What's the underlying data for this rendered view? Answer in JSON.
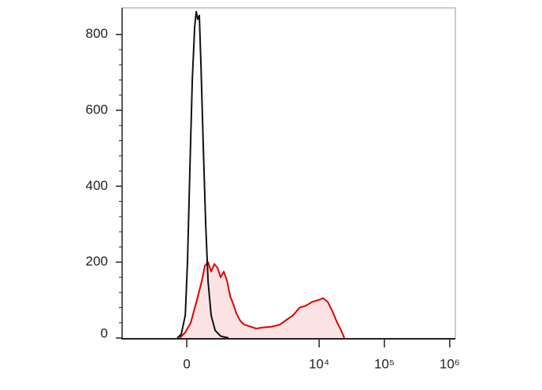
{
  "chart_data": {
    "type": "histogram-overlay",
    "xscale": "biexponential",
    "linear_width": 188,
    "xlim": [
      -910,
      1220000
    ],
    "xticks": [
      0,
      {
        "value": 10000,
        "label": "10⁴"
      },
      {
        "value": 100000,
        "label": "10⁵"
      },
      {
        "value": 1000000,
        "label": "10⁶"
      }
    ],
    "ylim": [
      0,
      870
    ],
    "yticks": [
      0,
      200,
      400,
      600,
      800
    ],
    "series": [
      {
        "color": "#e00000",
        "fill": "#fbe3e3",
        "x": [
          -47,
          -10,
          26,
          69,
          104,
          128,
          155,
          182,
          212,
          246,
          282,
          322,
          367,
          414,
          464,
          524,
          605,
          703,
          882,
          1075,
          1421,
          1884,
          2491,
          3290,
          3995,
          4991,
          6232,
          7783,
          9720,
          11487,
          13574,
          16036,
          18950,
          21752,
          24327
        ],
        "values": [
          0,
          15,
          40,
          100,
          150,
          190,
          200,
          175,
          195,
          185,
          160,
          175,
          150,
          110,
          90,
          65,
          45,
          35,
          30,
          25,
          28,
          30,
          35,
          50,
          60,
          80,
          85,
          95,
          100,
          105,
          95,
          70,
          40,
          20,
          0
        ]
      },
      {
        "color": "#111111",
        "x": [
          -64,
          -37,
          -10,
          5,
          21,
          37,
          53,
          64,
          75,
          86,
          98,
          116,
          135,
          155,
          182,
          221,
          282,
          389
        ],
        "values": [
          0,
          10,
          60,
          200,
          450,
          680,
          820,
          860,
          840,
          850,
          720,
          500,
          300,
          150,
          60,
          20,
          5,
          0
        ]
      }
    ]
  }
}
